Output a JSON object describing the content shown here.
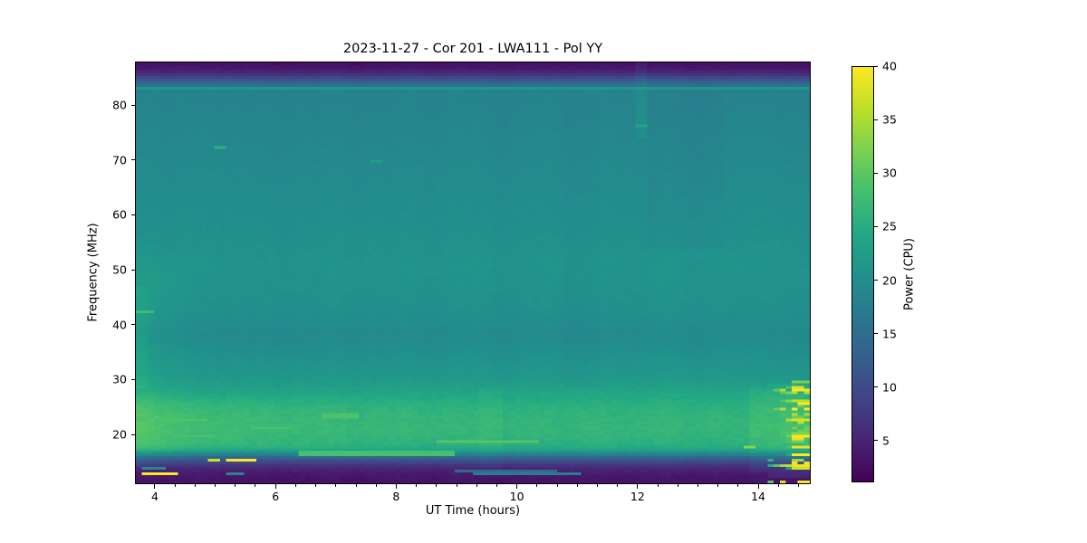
{
  "figure": {
    "background": "#ffffff"
  },
  "chart_data": {
    "type": "heatmap",
    "title": "2023-11-27 - Cor 201 - LWA111 - Pol YY",
    "xlabel": "UT Time (hours)",
    "ylabel": "Frequency (MHz)",
    "xlim": [
      3.67,
      14.87
    ],
    "ylim": [
      10.97,
      87.91
    ],
    "xticks": [
      4,
      6,
      8,
      10,
      12,
      14
    ],
    "x_minor_step": 0.3333,
    "yticks": [
      20,
      30,
      40,
      50,
      60,
      70,
      80
    ],
    "grid_cols": 112,
    "grid_rows": 156,
    "colorbar": {
      "label": "Power (CPU)",
      "ticks": [
        5,
        10,
        15,
        20,
        25,
        30,
        35,
        40
      ],
      "vmin": 1.1,
      "vmax": 40,
      "colormap": "viridis",
      "stops": [
        "#440154",
        "#482475",
        "#414487",
        "#355f8d",
        "#2a788e",
        "#21918c",
        "#22a884",
        "#44bf70",
        "#7ad151",
        "#bddf26",
        "#fde725"
      ]
    },
    "background_profile": [
      [
        10.97,
        3.2
      ],
      [
        12,
        3.4
      ],
      [
        13,
        4.2
      ],
      [
        14,
        6.0
      ],
      [
        15,
        10.0
      ],
      [
        15.8,
        15.0
      ],
      [
        16.5,
        20.0
      ],
      [
        17.2,
        24.0
      ],
      [
        18,
        25.5
      ],
      [
        19.5,
        26.2
      ],
      [
        21,
        26.5
      ],
      [
        23,
        26.3
      ],
      [
        24.5,
        25.8
      ],
      [
        26,
        25.0
      ],
      [
        27.5,
        23.8
      ],
      [
        29,
        22.5
      ],
      [
        31,
        21.4
      ],
      [
        33,
        20.9
      ],
      [
        35,
        20.3
      ],
      [
        37,
        19.6
      ],
      [
        38.5,
        19.4
      ],
      [
        40,
        19.9
      ],
      [
        43,
        20.4
      ],
      [
        47,
        20.7
      ],
      [
        51,
        20.8
      ],
      [
        55,
        20.5
      ],
      [
        60,
        20.1
      ],
      [
        65,
        19.7
      ],
      [
        70,
        19.3
      ],
      [
        74,
        19.0
      ],
      [
        78,
        18.7
      ],
      [
        81,
        18.4
      ],
      [
        82.7,
        18.3
      ],
      [
        84,
        15.0
      ],
      [
        85,
        10.0
      ],
      [
        86,
        5.5
      ],
      [
        87,
        3.4
      ],
      [
        87.91,
        2.8
      ]
    ],
    "rfi_segments": [
      {
        "t1": 3.67,
        "t2": 14.87,
        "f": 83.3,
        "p": 21.5
      },
      {
        "t1": 3.7,
        "t2": 3.95,
        "f": 42.2,
        "p": 27.5
      },
      {
        "t1": 4.95,
        "t2": 5.15,
        "f": 72.3,
        "p": 26.0
      },
      {
        "t1": 7.55,
        "t2": 7.8,
        "f": 70.0,
        "p": 23.0
      },
      {
        "t1": 12.0,
        "t2": 12.12,
        "f": 76.3,
        "p": 23.5
      },
      {
        "t1": 4.85,
        "t2": 5.1,
        "f": 15.1,
        "p": 37.0
      },
      {
        "t1": 5.18,
        "t2": 5.65,
        "f": 15.1,
        "p": 40.0
      },
      {
        "t1": 3.72,
        "t2": 4.35,
        "f": 12.9,
        "p": 40.0
      },
      {
        "t1": 3.78,
        "t2": 4.2,
        "f": 13.7,
        "p": 19.0
      },
      {
        "t1": 5.2,
        "t2": 5.48,
        "f": 12.9,
        "p": 18.5
      },
      {
        "t1": 6.4,
        "t2": 9.0,
        "f": 16.4,
        "p": 28.5
      },
      {
        "t1": 9.3,
        "t2": 11.1,
        "f": 12.6,
        "p": 17.5
      },
      {
        "t1": 9.0,
        "t2": 10.7,
        "f": 13.3,
        "p": 14.5
      },
      {
        "t1": 4.1,
        "t2": 4.9,
        "f": 22.6,
        "p": 29.0
      },
      {
        "t1": 5.6,
        "t2": 6.3,
        "f": 21.1,
        "p": 28.5
      },
      {
        "t1": 6.8,
        "t2": 7.4,
        "f": 23.3,
        "p": 29.0
      },
      {
        "t1": 4.3,
        "t2": 5.0,
        "f": 19.6,
        "p": 28.5
      },
      {
        "t1": 8.7,
        "t2": 10.4,
        "f": 18.6,
        "p": 29.5
      },
      {
        "t1": 13.72,
        "t2": 13.95,
        "f": 17.6,
        "p": 33.0
      }
    ],
    "vertical_stripes": [
      {
        "t1": 12.0,
        "t2": 12.12,
        "f1": 74.0,
        "f2": 87.9,
        "boost": 1.3
      },
      {
        "t1": 9.4,
        "t2": 9.8,
        "f1": 13.0,
        "f2": 28.0,
        "boost": 0.7
      },
      {
        "t1": 13.9,
        "t2": 14.15,
        "f1": 13.0,
        "f2": 28.5,
        "boost": 1.2
      }
    ],
    "dark_patches": [
      {
        "t1": 12.15,
        "t2": 13.45,
        "f1": 54,
        "f2": 84,
        "amt": 0.55
      },
      {
        "t1": 10.75,
        "t2": 11.35,
        "f1": 28,
        "f2": 82,
        "amt": 0.35
      }
    ],
    "band_boost": {
      "f1": 16.0,
      "f2": 27.5,
      "t_end": 9.5,
      "max": 1.4
    },
    "left_edge_boost": {
      "t_end": 4.7,
      "f1": 14,
      "f2": 55,
      "max": 1.8
    },
    "bursts": {
      "t_start": 14.05,
      "t_strong": 14.6,
      "f_min": 11.2,
      "f_max": 29.5,
      "row_active_prob": 0.6,
      "low_row_active_prob": 0.35,
      "seed": 1337
    },
    "noise": {
      "seed": 42,
      "column_amp": 0.45,
      "cell_amp_low": 0.5,
      "cell_amp_mid": 0.3,
      "cell_amp_high": 0.22
    }
  }
}
